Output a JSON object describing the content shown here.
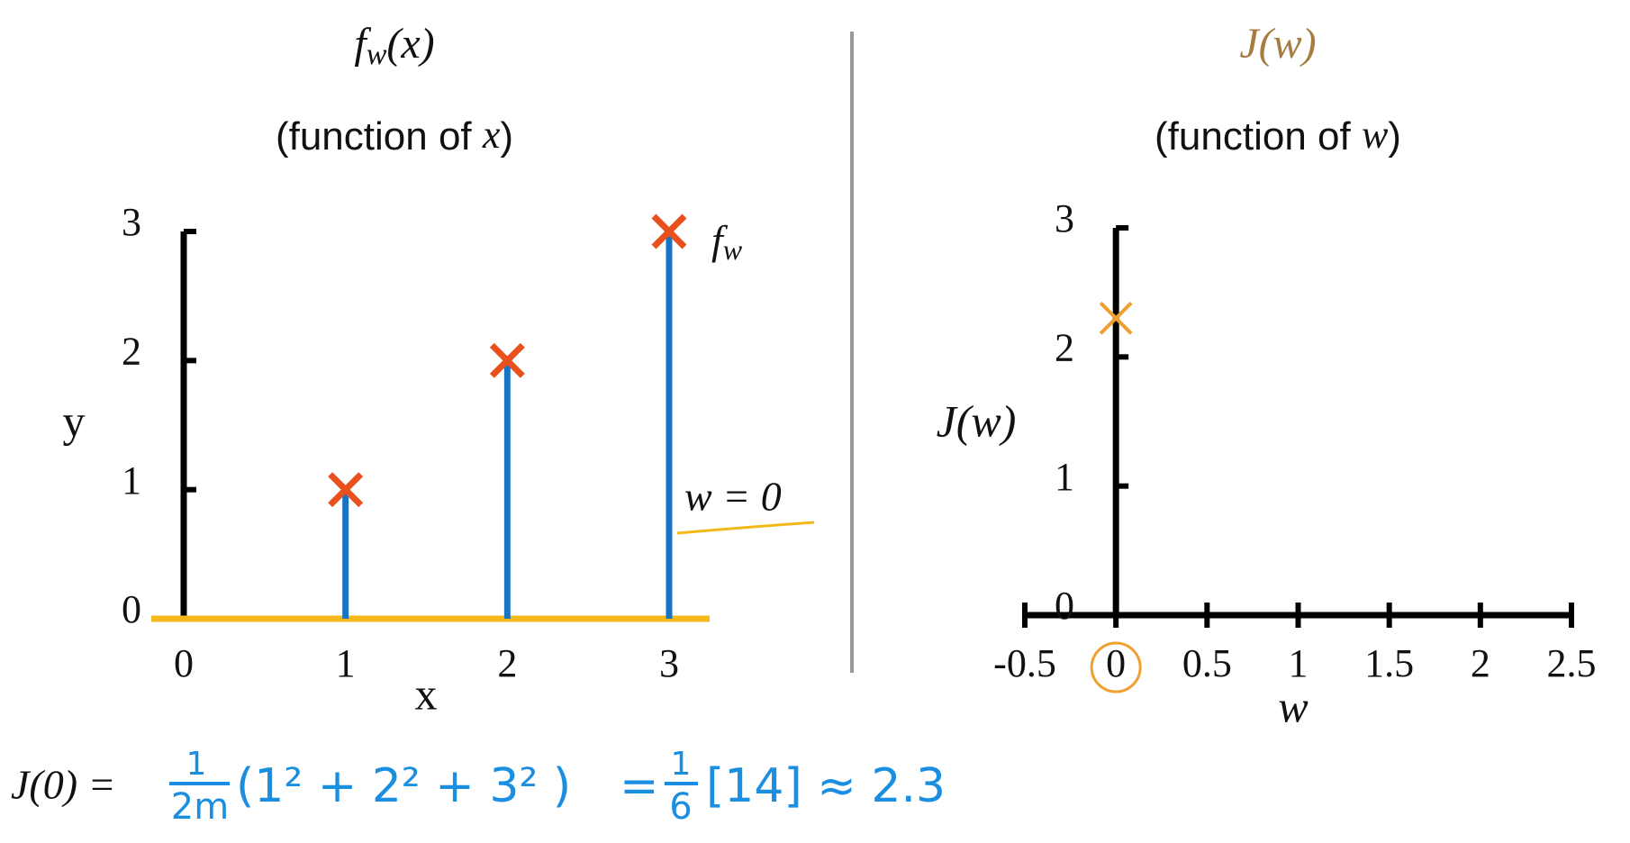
{
  "chart_data": [
    {
      "type": "scatter",
      "title": [
        "f",
        "w",
        "(x)"
      ],
      "subtitle": [
        "(function of ",
        "x",
        ")"
      ],
      "x_label": "x",
      "y_label": "y",
      "x": [
        1,
        2,
        3
      ],
      "series": [
        {
          "values": [
            1,
            2,
            3
          ],
          "color": "#e8501e"
        }
      ],
      "stem_color": "#1a74c4",
      "fit_line": {
        "x": [
          -0.2,
          3.25
        ],
        "values": [
          0,
          0
        ],
        "color": "#f3b81a"
      },
      "xlim": [
        0,
        3
      ],
      "ylim": [
        0,
        3
      ],
      "xticks": [
        0,
        1,
        2,
        3
      ],
      "yticks": [
        0,
        1,
        2,
        3
      ],
      "annotations": {
        "model": [
          "f",
          "w"
        ],
        "param": "w = 0"
      }
    },
    {
      "type": "scatter",
      "title": [
        "J(w)"
      ],
      "subtitle": [
        "(function of ",
        "w",
        ")"
      ],
      "x_label": "w",
      "y_label": "J(w)",
      "x": [
        0
      ],
      "series": [
        {
          "values": [
            2.3
          ],
          "color": "#f0a030"
        }
      ],
      "xlim": [
        -0.5,
        2.5
      ],
      "ylim": [
        0,
        3
      ],
      "xticks": [
        -0.5,
        0,
        0.5,
        1,
        1.5,
        2,
        2.5
      ],
      "yticks": [
        0,
        1,
        2,
        3
      ]
    }
  ],
  "formula": {
    "lhs": "J(0) =",
    "frac1": [
      "1",
      "2m"
    ],
    "sum": "(1² + 2² + 3² )",
    "eq": "=",
    "frac2": [
      "1",
      "6"
    ],
    "rhs": "[14] ≈ 2.3"
  }
}
